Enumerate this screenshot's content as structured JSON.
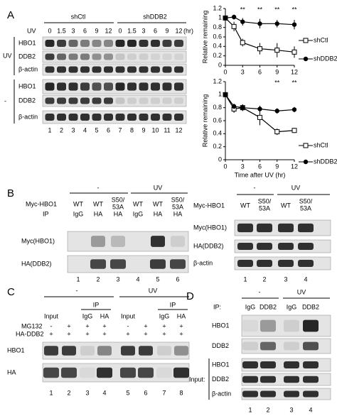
{
  "panel_a": {
    "label": "A",
    "uv_label": "UV",
    "groups": [
      "shCtl",
      "shDDB2"
    ],
    "timepoints": [
      "0",
      "1.5",
      "3",
      "6",
      "9",
      "12"
    ],
    "unit": "(hr)",
    "conditions": [
      "UV",
      "-"
    ],
    "rows": [
      "HBO1",
      "DDB2",
      "β-actin"
    ],
    "lanes": [
      "1",
      "2",
      "3",
      "4",
      "5",
      "6",
      "7",
      "8",
      "9",
      "10",
      "11",
      "12"
    ]
  },
  "chart_data": [
    {
      "type": "line",
      "ylabel": "Relative remaining",
      "xlim": [
        0,
        12
      ],
      "xticks": [
        0,
        3,
        6,
        9,
        12
      ],
      "ylim": [
        0,
        1.2
      ],
      "yticks": [
        0,
        0.2,
        0.4,
        0.6,
        0.8,
        1,
        1.2
      ],
      "x": [
        0,
        1.5,
        3,
        6,
        9,
        12
      ],
      "series": [
        {
          "name": "shCtl",
          "color": "#000000",
          "marker": "open-square",
          "values": [
            1,
            0.82,
            0.48,
            0.35,
            0.32,
            0.28
          ],
          "errors": [
            0,
            0.1,
            0.08,
            0.12,
            0.15,
            0.12
          ]
        },
        {
          "name": "shDDB2",
          "color": "#000000",
          "marker": "filled-circle",
          "values": [
            1,
            1.02,
            0.92,
            0.88,
            0.88,
            0.86
          ],
          "errors": [
            0,
            0.05,
            0.08,
            0.1,
            0.08,
            0.1
          ]
        }
      ],
      "annotations": [
        {
          "text": "**",
          "x": 3
        },
        {
          "text": "**",
          "x": 6
        },
        {
          "text": "**",
          "x": 9
        },
        {
          "text": "**",
          "x": 12
        }
      ]
    },
    {
      "type": "line",
      "ylabel": "Relative remaining",
      "xlabel": "Time after UV (hr)",
      "xlim": [
        0,
        12
      ],
      "xticks": [
        0,
        3,
        6,
        9,
        12
      ],
      "ylim": [
        0,
        1.2
      ],
      "yticks": [
        0,
        0.2,
        0.4,
        0.6,
        0.8,
        1,
        1.2
      ],
      "x": [
        0,
        1.5,
        3,
        6,
        9,
        12
      ],
      "series": [
        {
          "name": "shCtl",
          "color": "#000000",
          "marker": "open-square",
          "values": [
            1,
            0.78,
            0.8,
            0.65,
            0.43,
            0.45
          ],
          "errors": [
            0,
            0.06,
            0.05,
            0.12,
            0.05,
            0.04
          ]
        },
        {
          "name": "shDDB2",
          "color": "#000000",
          "marker": "filled-circle",
          "values": [
            1,
            0.82,
            0.8,
            0.78,
            0.75,
            0.77
          ],
          "errors": [
            0,
            0.04,
            0.05,
            0.05,
            0.04,
            0.04
          ]
        }
      ],
      "annotations": [
        {
          "text": "**",
          "x": 9
        },
        {
          "text": "**",
          "x": 12
        }
      ]
    }
  ],
  "panel_b": {
    "label": "B",
    "left": {
      "conditions": [
        "-",
        "UV"
      ],
      "myc_label": "Myc-HBO1",
      "ip_label": "IP",
      "myc": [
        [
          "WT"
        ],
        [
          "WT"
        ],
        [
          "S50/",
          "53A"
        ],
        [
          "WT"
        ],
        [
          "WT"
        ],
        [
          "S50/",
          "53A"
        ]
      ],
      "ip": [
        "IgG",
        "HA",
        "HA",
        "IgG",
        "HA",
        "HA"
      ],
      "rows": [
        "Myc(HBO1)",
        "HA(DDB2)"
      ],
      "lanes": [
        "1",
        "2",
        "3",
        "4",
        "5",
        "6"
      ]
    },
    "right": {
      "conditions": [
        "-",
        "UV"
      ],
      "myc_label": "Myc-HBO1",
      "myc": [
        [
          "WT"
        ],
        [
          "S50/",
          "53A"
        ],
        [
          "WT"
        ],
        [
          "S50/",
          "53A"
        ]
      ],
      "rows": [
        "Myc(HBO1)",
        "HA(DDB2)",
        "β-actin"
      ],
      "lanes": [
        "1",
        "2",
        "3",
        "4"
      ]
    }
  },
  "panel_c": {
    "label": "C",
    "conditions": [
      "-",
      "UV"
    ],
    "ip_label": "IP",
    "columns": [
      "Input",
      "",
      "IgG",
      "HA",
      "Input",
      "",
      "IgG",
      "HA"
    ],
    "mg132_label": "MG132",
    "mg132": [
      "-",
      "+",
      "+",
      "+",
      "-",
      "+",
      "+",
      "+"
    ],
    "ha_ddb2_label": "HA-DDB2",
    "ha_ddb2": [
      "+",
      "+",
      "+",
      "+",
      "+",
      "+",
      "+",
      "+"
    ],
    "rows": [
      "HBO1",
      "HA"
    ],
    "lanes": [
      "1",
      "2",
      "3",
      "4",
      "5",
      "6",
      "7",
      "8"
    ]
  },
  "panel_d": {
    "label": "D",
    "conditions": [
      "-",
      "UV"
    ],
    "ip_label": "IP:",
    "ip": [
      "IgG",
      "DDB2",
      "IgG",
      "DDB2"
    ],
    "ip_rows": [
      "HBO1",
      "DDB2"
    ],
    "input_label": "Input:",
    "input_rows": [
      "HBO1",
      "DDB2",
      "β-actin"
    ],
    "lanes": [
      "1",
      "2",
      "3",
      "4"
    ]
  }
}
